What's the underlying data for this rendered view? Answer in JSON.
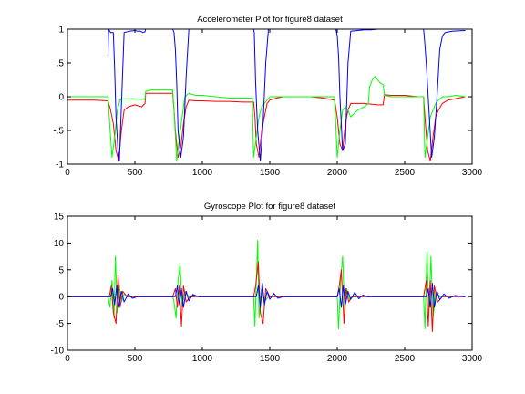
{
  "chart_data": [
    {
      "type": "line",
      "title": "Accelerometer Plot for figure8 dataset",
      "xlabel": "",
      "ylabel": "",
      "xlim": [
        0,
        3000
      ],
      "ylim": [
        -1,
        1
      ],
      "xticks": [
        0,
        500,
        1000,
        1500,
        2000,
        2500,
        3000
      ],
      "yticks": [
        -1,
        -0.5,
        0,
        0.5,
        1
      ],
      "grid": false,
      "series": [
        {
          "color": "#ff0000",
          "x": [
            0,
            100,
            200,
            300,
            320,
            340,
            360,
            380,
            400,
            420,
            450,
            500,
            550,
            575,
            580,
            620,
            700,
            780,
            790,
            800,
            820,
            840,
            860,
            880,
            900,
            950,
            1000,
            1100,
            1200,
            1300,
            1380,
            1390,
            1400,
            1420,
            1440,
            1460,
            1480,
            1500,
            1550,
            1600,
            1700,
            1800,
            1900,
            1980,
            2000,
            2020,
            2040,
            2060,
            2080,
            2100,
            2200,
            2300,
            2340,
            2350,
            2400,
            2500,
            2600,
            2640,
            2650,
            2670,
            2690,
            2710,
            2730,
            2750,
            2780,
            2820,
            2900,
            2950
          ],
          "y": [
            -0.05,
            -0.05,
            -0.05,
            -0.06,
            -0.2,
            -0.4,
            -0.8,
            -0.95,
            -0.5,
            -0.2,
            -0.15,
            -0.12,
            -0.15,
            -0.1,
            0.05,
            0.05,
            0.05,
            0.05,
            -0.2,
            -0.5,
            -0.9,
            -0.75,
            -0.4,
            -0.15,
            -0.05,
            -0.06,
            -0.06,
            -0.07,
            -0.07,
            -0.08,
            -0.08,
            -0.3,
            -0.7,
            -0.9,
            -0.5,
            -0.3,
            -0.1,
            -0.05,
            -0.02,
            0.0,
            0.0,
            0.0,
            -0.02,
            -0.05,
            -0.3,
            -0.7,
            -0.8,
            -0.4,
            -0.2,
            -0.1,
            -0.1,
            -0.12,
            -0.12,
            0.03,
            0.02,
            0.02,
            0.0,
            0.0,
            -0.3,
            -0.8,
            -0.95,
            -0.6,
            -0.3,
            -0.2,
            -0.1,
            -0.05,
            -0.02,
            0.0
          ]
        },
        {
          "color": "#00ff00",
          "x": [
            0,
            100,
            200,
            300,
            310,
            330,
            350,
            370,
            390,
            410,
            450,
            500,
            560,
            575,
            580,
            620,
            700,
            780,
            790,
            810,
            830,
            850,
            870,
            900,
            950,
            1000,
            1100,
            1200,
            1300,
            1370,
            1380,
            1400,
            1420,
            1440,
            1460,
            1480,
            1500,
            1550,
            1600,
            1700,
            1800,
            1900,
            1980,
            2000,
            2020,
            2040,
            2060,
            2080,
            2100,
            2150,
            2200,
            2230,
            2240,
            2260,
            2280,
            2300,
            2320,
            2340,
            2350,
            2400,
            2500,
            2600,
            2640,
            2650,
            2670,
            2690,
            2710,
            2730,
            2750,
            2780,
            2820,
            2880,
            2950
          ],
          "y": [
            0.0,
            0.0,
            0.0,
            0.0,
            -0.3,
            -0.9,
            -0.6,
            -0.2,
            -0.05,
            -0.03,
            -0.03,
            -0.03,
            -0.04,
            -0.03,
            0.08,
            0.1,
            0.1,
            0.1,
            -0.2,
            -0.95,
            -0.6,
            -0.3,
            0.0,
            0.05,
            0.02,
            0.02,
            0.0,
            -0.02,
            -0.02,
            -0.02,
            -0.9,
            -0.6,
            -0.3,
            -0.15,
            -0.1,
            -0.05,
            0.0,
            0.0,
            0.0,
            0.0,
            0.0,
            0.0,
            0.0,
            -0.9,
            -0.5,
            -0.2,
            -0.15,
            -0.2,
            -0.3,
            -0.2,
            -0.15,
            -0.1,
            0.15,
            0.25,
            0.3,
            0.25,
            0.2,
            0.18,
            0.02,
            0.0,
            0.0,
            0.0,
            0.0,
            -0.9,
            -0.6,
            -0.3,
            -0.2,
            -0.1,
            -0.05,
            0.0,
            0.0,
            0.02,
            0.0
          ]
        },
        {
          "color": "#0000ff",
          "x": [
            300,
            305,
            320,
            340,
            350,
            360,
            375,
            385,
            395,
            420,
            460,
            500,
            520,
            540,
            560,
            575,
            578,
            780,
            790,
            800,
            810,
            820,
            840,
            860,
            880,
            900,
            1380,
            1385,
            1395,
            1410,
            1430,
            1450,
            1470,
            1490,
            1990,
            2000,
            2010,
            2020,
            2040,
            2060,
            2080,
            2100,
            2150,
            2200,
            2250,
            2300,
            2640,
            2645,
            2660,
            2680,
            2700,
            2720,
            2740,
            2760,
            2780,
            2800,
            2850,
            2950
          ],
          "y": [
            0.6,
            1.0,
            0.95,
            0.95,
            0.4,
            -0.3,
            -0.8,
            -0.95,
            -0.4,
            0.95,
            0.97,
            0.98,
            0.97,
            0.97,
            0.95,
            0.96,
            1.0,
            1.0,
            0.95,
            0.7,
            0.2,
            -0.5,
            -0.9,
            -0.6,
            0.3,
            1.0,
            1.0,
            0.95,
            0.2,
            -0.5,
            -0.95,
            -0.4,
            0.5,
            1.0,
            1.0,
            0.9,
            0.6,
            0.0,
            -0.8,
            -0.7,
            0.5,
            0.97,
            0.98,
            0.99,
            0.99,
            1.0,
            1.0,
            0.9,
            0.5,
            -0.2,
            -0.9,
            -0.6,
            0.0,
            0.7,
            0.9,
            0.95,
            0.97,
            0.98
          ]
        }
      ]
    },
    {
      "type": "line",
      "title": "Gyroscope Plot for figure8 dataset",
      "xlabel": "",
      "ylabel": "",
      "xlim": [
        0,
        3000
      ],
      "ylim": [
        -10,
        15
      ],
      "xticks": [
        0,
        500,
        1000,
        1500,
        2000,
        2500,
        3000
      ],
      "yticks": [
        -10,
        -5,
        0,
        5,
        10,
        15
      ],
      "grid": false,
      "series": [
        {
          "color": "#00ff00",
          "x": [
            0,
            300,
            315,
            330,
            345,
            355,
            370,
            385,
            400,
            420,
            450,
            780,
            790,
            805,
            820,
            835,
            850,
            870,
            900,
            1380,
            1390,
            1400,
            1410,
            1420,
            1440,
            1460,
            1490,
            2000,
            2010,
            2025,
            2040,
            2055,
            2070,
            2090,
            2120,
            2640,
            2650,
            2665,
            2680,
            2695,
            2710,
            2730,
            2760,
            2950
          ],
          "y": [
            0,
            0,
            -2,
            3,
            -4,
            7.5,
            -3,
            2,
            -1,
            0.5,
            0,
            0,
            -1,
            -4,
            3,
            6,
            -2,
            1,
            0,
            0,
            -5.5,
            3,
            10.5,
            -4,
            2,
            -1,
            0,
            0,
            -6,
            3,
            7.5,
            -3,
            1.5,
            -0.5,
            0,
            0,
            -6,
            8.5,
            -3,
            7.5,
            -4,
            1,
            0,
            0
          ]
        },
        {
          "color": "#ff0000",
          "x": [
            0,
            310,
            325,
            340,
            360,
            375,
            390,
            410,
            440,
            780,
            800,
            815,
            830,
            845,
            860,
            880,
            910,
            1380,
            1395,
            1415,
            1430,
            1450,
            1470,
            1500,
            2000,
            2015,
            2030,
            2050,
            2065,
            2085,
            2110,
            2640,
            2660,
            2675,
            2690,
            2705,
            2720,
            2745,
            2780,
            2950
          ],
          "y": [
            0,
            0,
            2,
            -3,
            -5,
            4,
            -2,
            1,
            0,
            0,
            1.5,
            -2,
            2,
            -5.5,
            2,
            -1,
            0,
            0,
            2,
            6.5,
            -3,
            -5,
            1.5,
            0,
            0,
            2,
            5,
            -5,
            1.5,
            -1,
            0,
            0,
            3,
            -5.5,
            3,
            -6.5,
            2,
            -1,
            0,
            0
          ]
        },
        {
          "color": "#0000ff",
          "x": [
            0,
            320,
            335,
            350,
            365,
            380,
            400,
            420,
            450,
            480,
            520,
            800,
            815,
            830,
            845,
            860,
            880,
            900,
            930,
            970,
            1400,
            1415,
            1430,
            1445,
            1460,
            1480,
            1500,
            1530,
            1560,
            1600,
            2000,
            2015,
            2030,
            2045,
            2060,
            2080,
            2100,
            2130,
            2160,
            2190,
            2220,
            2660,
            2675,
            2690,
            2705,
            2720,
            2740,
            2760,
            2790,
            2830,
            2870,
            2950
          ],
          "y": [
            0,
            0,
            1.5,
            -1.5,
            2,
            -2,
            1,
            -1,
            0.5,
            -0.3,
            0,
            0,
            2,
            -1.5,
            1.5,
            -2,
            1,
            -0.8,
            0.4,
            0,
            0,
            2,
            -2,
            2.5,
            -1.5,
            1,
            -0.5,
            0.6,
            -0.3,
            0,
            0,
            1.5,
            -2,
            2,
            -1.5,
            1,
            -0.5,
            0.8,
            -0.4,
            0.3,
            0,
            0,
            1.5,
            -2,
            2.5,
            -2,
            1,
            -0.6,
            0.5,
            -0.3,
            0.2,
            0
          ]
        }
      ]
    }
  ]
}
